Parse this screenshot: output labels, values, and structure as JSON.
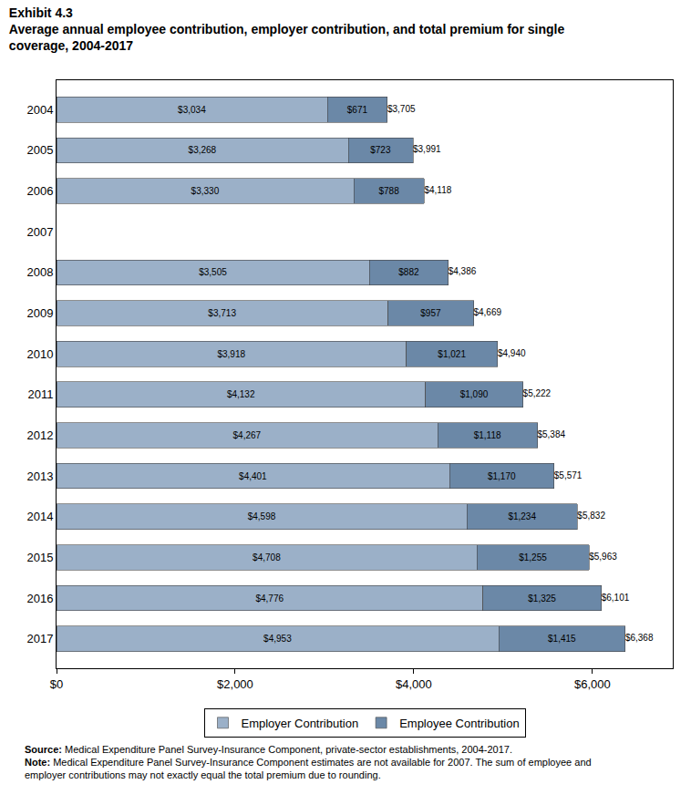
{
  "chart_data": {
    "type": "bar",
    "title": "Exhibit 4.3",
    "subtitle": "Average annual employee contribution, employer contribution, and total premium for single coverage, 2004-2017",
    "orientation": "horizontal",
    "stacked": true,
    "data_labels": true,
    "grid": false,
    "legend": "bottom",
    "categories": [
      "2004",
      "2005",
      "2006",
      "2007",
      "2008",
      "2009",
      "2010",
      "2011",
      "2012",
      "2013",
      "2014",
      "2015",
      "2016",
      "2017"
    ],
    "series": [
      {
        "name": "Employer Contribution",
        "color": "#9bb0c8",
        "values": [
          3034,
          3268,
          3330,
          null,
          3505,
          3713,
          3918,
          4132,
          4267,
          4401,
          4598,
          4708,
          4776,
          4953
        ],
        "value_labels": [
          "$3,034",
          "$3,268",
          "$3,330",
          null,
          "$3,505",
          "$3,713",
          "$3,918",
          "$4,132",
          "$4,267",
          "$4,401",
          "$4,598",
          "$4,708",
          "$4,776",
          "$4,953"
        ]
      },
      {
        "name": "Employee Contribution",
        "color": "#6b88a7",
        "values": [
          671,
          723,
          788,
          null,
          882,
          957,
          1021,
          1090,
          1118,
          1170,
          1234,
          1255,
          1325,
          1415
        ],
        "value_labels": [
          "$671",
          "$723",
          "$788",
          null,
          "$882",
          "$957",
          "$1,021",
          "$1,090",
          "$1,118",
          "$1,170",
          "$1,234",
          "$1,255",
          "$1,325",
          "$1,415"
        ]
      }
    ],
    "totals": {
      "values": [
        3705,
        3991,
        4118,
        null,
        4386,
        4669,
        4940,
        5222,
        5384,
        5571,
        5832,
        5963,
        6101,
        6368
      ],
      "value_labels": [
        "$3,705",
        "$3,991",
        "$4,118",
        null,
        "$4,386",
        "$4,669",
        "$4,940",
        "$5,222",
        "$5,384",
        "$5,571",
        "$5,832",
        "$5,963",
        "$6,101",
        "$6,368"
      ]
    },
    "xlim": [
      0,
      6900
    ],
    "xticks": [
      {
        "value": 0,
        "label": "$0"
      },
      {
        "value": 2000,
        "label": "$2,000"
      },
      {
        "value": 4000,
        "label": "$4,000"
      },
      {
        "value": 6000,
        "label": "$6,000"
      }
    ],
    "source_label": "Source:",
    "source": "Medical Expenditure Panel Survey-Insurance Component, private-sector establishments, 2004-2017.",
    "note_label": "Note:",
    "note": "Medical Expenditure Panel Survey-Insurance Component estimates are not available for 2007. The sum of employee and employer contributions may not exactly equal the total premium due to rounding."
  }
}
